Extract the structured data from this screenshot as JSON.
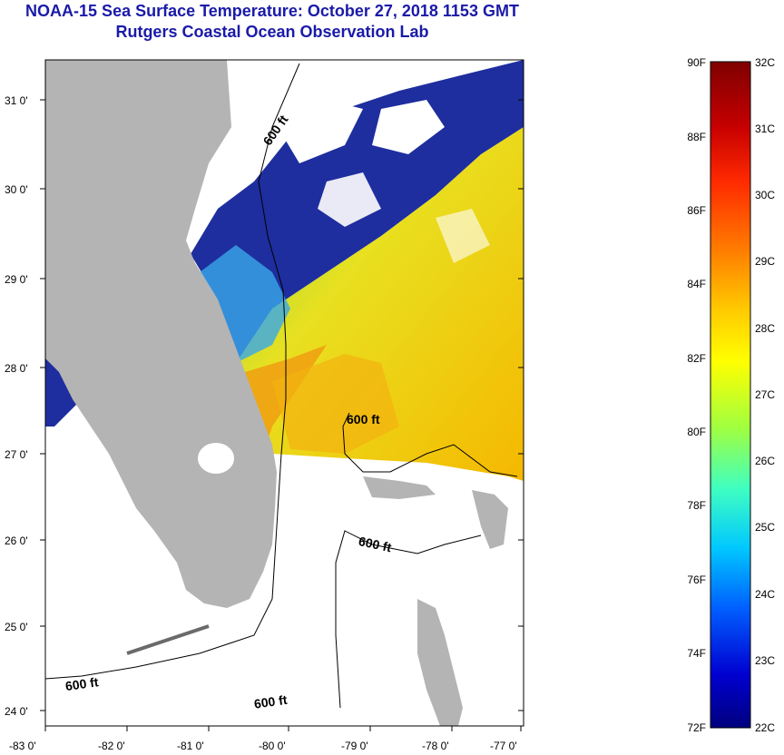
{
  "header": {
    "title": "NOAA-15 Sea Surface Temperature:  October 27, 2018 1153 GMT",
    "subtitle": "Rutgers Coastal Ocean Observation Lab"
  },
  "map": {
    "lat_labels": [
      "31 0'",
      "30 0'",
      "29 0'",
      "28 0'",
      "27 0'",
      "26 0'",
      "25 0'",
      "24 0'"
    ],
    "lon_labels": [
      "-83 0'",
      "-82 0'",
      "-81 0'",
      "-80 0'",
      "-79 0'",
      "-78 0'",
      "-77 0'"
    ],
    "contour_labels": [
      "600 ft",
      "600 ft",
      "600 ft",
      "600 ft",
      "600 ft"
    ],
    "colors": {
      "land": "#b4b4b4",
      "ocean_no_data": "#ffffff",
      "cloud_blue": "#1a2a9a"
    }
  },
  "colorbar": {
    "f_labels": [
      "90F",
      "88F",
      "86F",
      "84F",
      "82F",
      "80F",
      "78F",
      "76F",
      "74F",
      "72F"
    ],
    "c_labels": [
      "32C",
      "31C",
      "30C",
      "29C",
      "28C",
      "27C",
      "26C",
      "25C",
      "24C",
      "23C",
      "22C"
    ],
    "gradient": [
      "#7f0000",
      "#c80000",
      "#ff2a00",
      "#ff7a00",
      "#ffc800",
      "#ffff00",
      "#a0ff40",
      "#40ffc0",
      "#00c8ff",
      "#0060ff",
      "#0000d0",
      "#00007f"
    ]
  }
}
